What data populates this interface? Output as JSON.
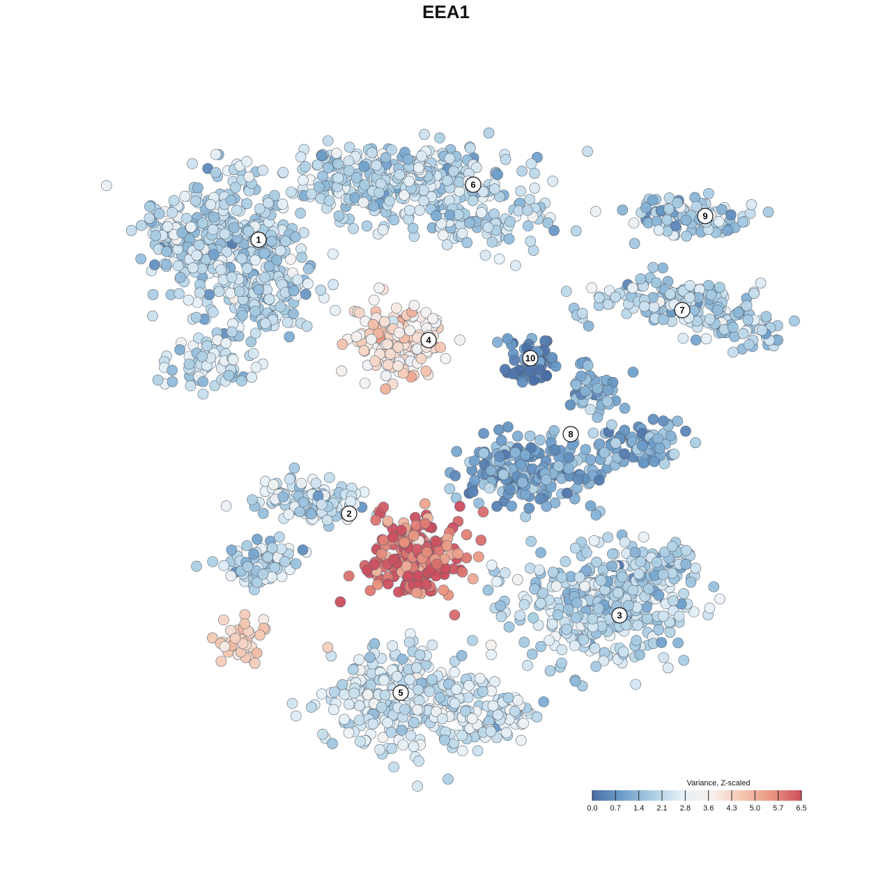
{
  "chart_data": {
    "type": "scatter",
    "title": "EEA1",
    "colorbar": {
      "title": "Variance, Z-scaled",
      "ticks": [
        "0.0",
        "0.7",
        "1.4",
        "2.1",
        "2.8",
        "3.6",
        "4.3",
        "5.0",
        "5.7",
        "6.5"
      ],
      "min": 0.0,
      "max": 6.5,
      "colors": [
        "#4a6fa5",
        "#6e9fcb",
        "#a9cde3",
        "#e6f0f7",
        "#f6f1ee",
        "#f4c7b1",
        "#e9957f",
        "#cc4f5f"
      ]
    },
    "clusters": [
      {
        "label": "1",
        "value": 2.1
      },
      {
        "label": "2",
        "value": 2.2
      },
      {
        "label": "3",
        "value": 2.0
      },
      {
        "label": "4",
        "value": 4.1
      },
      {
        "label": "5",
        "value": 2.5
      },
      {
        "label": "6",
        "value": 2.1
      },
      {
        "label": "7",
        "value": 2.0
      },
      {
        "label": "8",
        "value": 1.1
      },
      {
        "label": "9",
        "value": 1.9
      },
      {
        "label": "10",
        "value": 0.5
      }
    ],
    "hotspot": {
      "label": "",
      "value": 6.2
    },
    "outlier_group": {
      "label": "",
      "value": 4.4
    }
  }
}
